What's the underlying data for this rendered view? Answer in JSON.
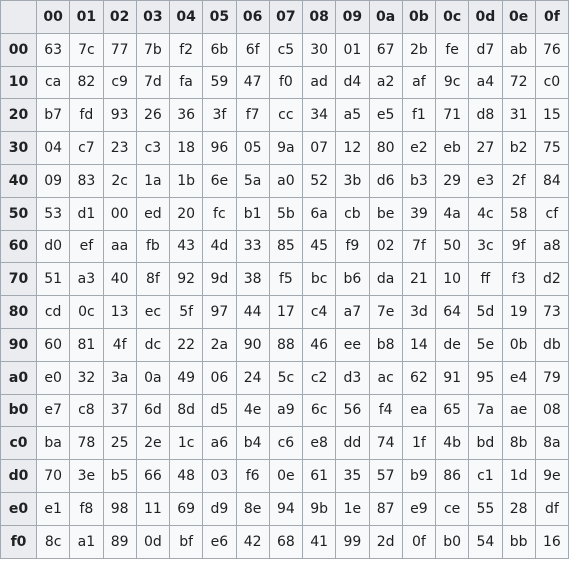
{
  "table": {
    "columns": [
      "00",
      "01",
      "02",
      "03",
      "04",
      "05",
      "06",
      "07",
      "08",
      "09",
      "0a",
      "0b",
      "0c",
      "0d",
      "0e",
      "0f"
    ],
    "rows": [
      {
        "label": "00",
        "cells": [
          "63",
          "7c",
          "77",
          "7b",
          "f2",
          "6b",
          "6f",
          "c5",
          "30",
          "01",
          "67",
          "2b",
          "fe",
          "d7",
          "ab",
          "76"
        ]
      },
      {
        "label": "10",
        "cells": [
          "ca",
          "82",
          "c9",
          "7d",
          "fa",
          "59",
          "47",
          "f0",
          "ad",
          "d4",
          "a2",
          "af",
          "9c",
          "a4",
          "72",
          "c0"
        ]
      },
      {
        "label": "20",
        "cells": [
          "b7",
          "fd",
          "93",
          "26",
          "36",
          "3f",
          "f7",
          "cc",
          "34",
          "a5",
          "e5",
          "f1",
          "71",
          "d8",
          "31",
          "15"
        ]
      },
      {
        "label": "30",
        "cells": [
          "04",
          "c7",
          "23",
          "c3",
          "18",
          "96",
          "05",
          "9a",
          "07",
          "12",
          "80",
          "e2",
          "eb",
          "27",
          "b2",
          "75"
        ]
      },
      {
        "label": "40",
        "cells": [
          "09",
          "83",
          "2c",
          "1a",
          "1b",
          "6e",
          "5a",
          "a0",
          "52",
          "3b",
          "d6",
          "b3",
          "29",
          "e3",
          "2f",
          "84"
        ]
      },
      {
        "label": "50",
        "cells": [
          "53",
          "d1",
          "00",
          "ed",
          "20",
          "fc",
          "b1",
          "5b",
          "6a",
          "cb",
          "be",
          "39",
          "4a",
          "4c",
          "58",
          "cf"
        ]
      },
      {
        "label": "60",
        "cells": [
          "d0",
          "ef",
          "aa",
          "fb",
          "43",
          "4d",
          "33",
          "85",
          "45",
          "f9",
          "02",
          "7f",
          "50",
          "3c",
          "9f",
          "a8"
        ]
      },
      {
        "label": "70",
        "cells": [
          "51",
          "a3",
          "40",
          "8f",
          "92",
          "9d",
          "38",
          "f5",
          "bc",
          "b6",
          "da",
          "21",
          "10",
          "ff",
          "f3",
          "d2"
        ]
      },
      {
        "label": "80",
        "cells": [
          "cd",
          "0c",
          "13",
          "ec",
          "5f",
          "97",
          "44",
          "17",
          "c4",
          "a7",
          "7e",
          "3d",
          "64",
          "5d",
          "19",
          "73"
        ]
      },
      {
        "label": "90",
        "cells": [
          "60",
          "81",
          "4f",
          "dc",
          "22",
          "2a",
          "90",
          "88",
          "46",
          "ee",
          "b8",
          "14",
          "de",
          "5e",
          "0b",
          "db"
        ]
      },
      {
        "label": "a0",
        "cells": [
          "e0",
          "32",
          "3a",
          "0a",
          "49",
          "06",
          "24",
          "5c",
          "c2",
          "d3",
          "ac",
          "62",
          "91",
          "95",
          "e4",
          "79"
        ]
      },
      {
        "label": "b0",
        "cells": [
          "e7",
          "c8",
          "37",
          "6d",
          "8d",
          "d5",
          "4e",
          "a9",
          "6c",
          "56",
          "f4",
          "ea",
          "65",
          "7a",
          "ae",
          "08"
        ]
      },
      {
        "label": "c0",
        "cells": [
          "ba",
          "78",
          "25",
          "2e",
          "1c",
          "a6",
          "b4",
          "c6",
          "e8",
          "dd",
          "74",
          "1f",
          "4b",
          "bd",
          "8b",
          "8a"
        ]
      },
      {
        "label": "d0",
        "cells": [
          "70",
          "3e",
          "b5",
          "66",
          "48",
          "03",
          "f6",
          "0e",
          "61",
          "35",
          "57",
          "b9",
          "86",
          "c1",
          "1d",
          "9e"
        ]
      },
      {
        "label": "e0",
        "cells": [
          "e1",
          "f8",
          "98",
          "11",
          "69",
          "d9",
          "8e",
          "94",
          "9b",
          "1e",
          "87",
          "e9",
          "ce",
          "55",
          "28",
          "df"
        ]
      },
      {
        "label": "f0",
        "cells": [
          "8c",
          "a1",
          "89",
          "0d",
          "bf",
          "e6",
          "42",
          "68",
          "41",
          "99",
          "2d",
          "0f",
          "b0",
          "54",
          "bb",
          "16"
        ]
      }
    ]
  }
}
